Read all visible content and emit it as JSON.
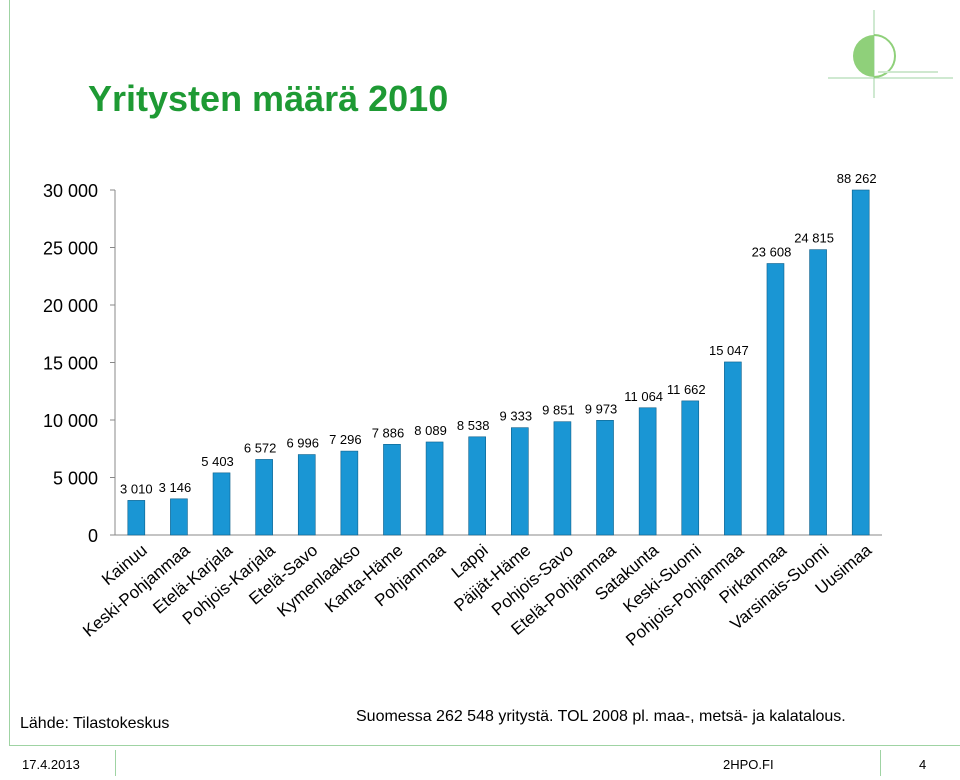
{
  "slide": {
    "title": "Yritysten määrä 2010",
    "source": "Lähde: Tilastokeskus",
    "note": "Suomessa 262 548 yritystä. TOL 2008 pl. maa-, metsä- ja kalatalous.",
    "footer_date": "17.4.2013",
    "footer_site": "2HPO.FI",
    "footer_page": "4",
    "title_color": "#1e9a34",
    "accent_color": "#9fd3a3"
  },
  "chart_data": {
    "type": "bar",
    "title": "",
    "xlabel": "",
    "ylabel": "",
    "ylim": [
      0,
      30000
    ],
    "yticks": [
      0,
      5000,
      10000,
      15000,
      20000,
      25000,
      30000
    ],
    "ytick_labels": [
      "0",
      "5 000",
      "10 000",
      "15 000",
      "20 000",
      "25 000",
      "30 000"
    ],
    "grid": false,
    "legend": "none",
    "bar_color": "#1a96d4",
    "categories": [
      "Kainuu",
      "Keski-Pohjanmaa",
      "Etelä-Karjala",
      "Pohjois-Karjala",
      "Etelä-Savo",
      "Kymenlaakso",
      "Kanta-Häme",
      "Pohjanmaa",
      "Lappi",
      "Päijät-Häme",
      "Pohjois-Savo",
      "Etelä-Pohjanmaa",
      "Satakunta",
      "Keski-Suomi",
      "Pohjois-Pohjanmaa",
      "Pirkanmaa",
      "Varsinais-Suomi",
      "Uusimaa"
    ],
    "values": [
      3010,
      3146,
      5403,
      6572,
      6996,
      7296,
      7886,
      8089,
      8538,
      9333,
      9851,
      9973,
      11064,
      11662,
      15047,
      23608,
      24815,
      88262
    ],
    "data_labels": [
      "3 010",
      "3 146",
      "5 403",
      "6 572",
      "6 996",
      "7 296",
      "7 886",
      "8 089",
      "8 538",
      "9 333",
      "9 851",
      "9 973",
      "11 064",
      "11 662",
      "15 047",
      "23 608",
      "24 815",
      "88 262"
    ]
  }
}
